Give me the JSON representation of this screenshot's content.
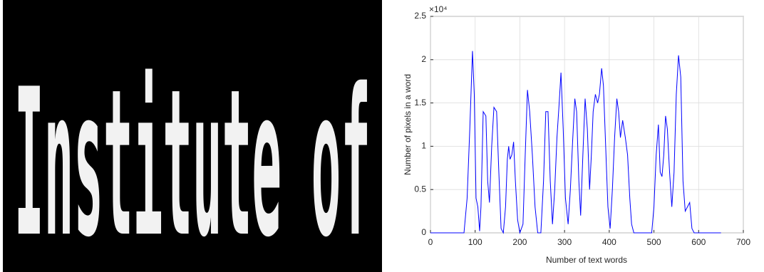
{
  "image": {
    "text": "Institute of"
  },
  "chart_data": {
    "type": "line",
    "xlabel": "Number of text words",
    "ylabel": "Number of pixels in a word",
    "y_multiplier": "×10⁴",
    "xlim": [
      0,
      700
    ],
    "xticks": [
      0,
      100,
      200,
      300,
      400,
      500,
      600,
      700
    ],
    "ylim": [
      0,
      25000
    ],
    "yticks": [
      0,
      {
        "value": 5000,
        "label": "0.5"
      },
      {
        "value": 10000,
        "label": "1"
      },
      {
        "value": 15000,
        "label": "1.5"
      },
      {
        "value": 20000,
        "label": "2"
      },
      {
        "value": 25000,
        "label": "2.5"
      }
    ],
    "grid": true,
    "series": [
      {
        "color": "#0000ff",
        "x": [
          0,
          75,
          82,
          88,
          94,
          98,
          102,
          106,
          110,
          113,
          118,
          124,
          128,
          132,
          137,
          142,
          148,
          153,
          158,
          163,
          168,
          172,
          175,
          178,
          182,
          186,
          190,
          195,
          200,
          207,
          212,
          217,
          222,
          228,
          234,
          240,
          247,
          253,
          258,
          263,
          268,
          273,
          278,
          283,
          288,
          292,
          297,
          302,
          308,
          313,
          318,
          323,
          327,
          332,
          336,
          341,
          346,
          351,
          356,
          360,
          364,
          369,
          374,
          378,
          383,
          387,
          392,
          397,
          402,
          407,
          412,
          417,
          421,
          425,
          430,
          436,
          441,
          446,
          450,
          455,
          495,
          500,
          505,
          510,
          514,
          518,
          522,
          526,
          530,
          535,
          540,
          545,
          550,
          555,
          560,
          565,
          570,
          575,
          580,
          585,
          590,
          650
        ],
        "values": [
          0,
          0,
          4000,
          12000,
          21000,
          16000,
          4000,
          3000,
          200,
          3000,
          14000,
          13500,
          6000,
          3500,
          10000,
          14500,
          14000,
          7000,
          500,
          0,
          3000,
          8500,
          10000,
          8500,
          9000,
          10500,
          6000,
          1500,
          0,
          1000,
          9000,
          16500,
          14000,
          9000,
          3000,
          0,
          0,
          6000,
          14000,
          14000,
          6000,
          1000,
          5000,
          11000,
          15000,
          18500,
          12000,
          4000,
          1000,
          5000,
          10500,
          15500,
          14000,
          6000,
          2000,
          9000,
          15500,
          12000,
          5000,
          9000,
          14000,
          16000,
          15000,
          16000,
          19000,
          17000,
          10000,
          3000,
          500,
          5000,
          11000,
          15500,
          14000,
          11000,
          13000,
          11000,
          9000,
          4000,
          1000,
          0,
          0,
          3000,
          9000,
          12500,
          7000,
          6500,
          9000,
          13500,
          12000,
          7000,
          3000,
          7000,
          16000,
          20500,
          18000,
          6000,
          2500,
          3000,
          3500,
          500,
          0,
          0
        ]
      }
    ]
  }
}
